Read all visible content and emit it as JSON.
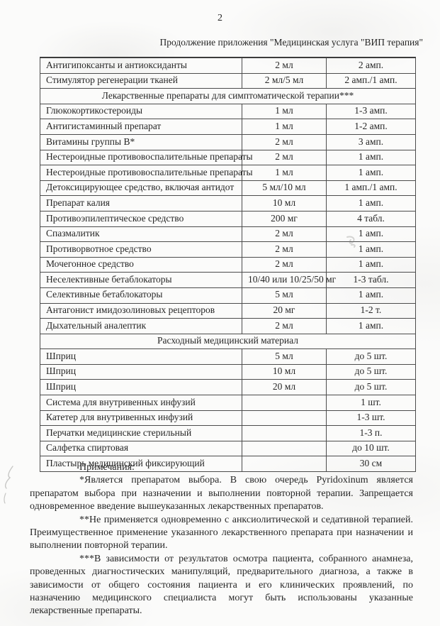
{
  "page": {
    "number": "2",
    "title": "Продолжение приложения \"Медицинская услуга \"ВИП терапия\""
  },
  "colors": {
    "paper": "#fbfbfa",
    "ink": "#262626",
    "table_border": "#4c4c4c"
  },
  "table": {
    "rows": [
      {
        "type": "item",
        "name": "Антигипоксанты и антиоксиданты",
        "dose": "2 мл",
        "qty": "2 амп."
      },
      {
        "type": "item",
        "name": "Стимулятор регенерации тканей",
        "dose": "2 мл/5 мл",
        "qty": "2 амп./1 амп."
      },
      {
        "type": "section",
        "label": "Лекарственные препараты для симптоматической терапии***"
      },
      {
        "type": "item",
        "name": "Глюкокортикостероиды",
        "dose": "1 мл",
        "qty": "1-3 амп."
      },
      {
        "type": "item",
        "name": "Антигистаминный препарат",
        "dose": "1 мл",
        "qty": "1-2 амп."
      },
      {
        "type": "item",
        "name": "Витамины группы В*",
        "dose": "2 мл",
        "qty": "3 амп."
      },
      {
        "type": "item",
        "name": "Нестероидные противовоспалительные препараты",
        "dose": "2 мл",
        "qty": "1 амп."
      },
      {
        "type": "item",
        "name": "Нестероидные противовоспалительные препараты",
        "dose": "1 мл",
        "qty": "1 амп."
      },
      {
        "type": "item",
        "name": "Детоксицирующее средство, включая антидот",
        "dose": "5 мл/10 мл",
        "qty": "1 амп./1 амп."
      },
      {
        "type": "item",
        "name": "Препарат калия",
        "dose": "10 мл",
        "qty": "1 амп."
      },
      {
        "type": "item",
        "name": "Противоэпилептическое средство",
        "dose": "200 мг",
        "qty": "4 табл."
      },
      {
        "type": "item",
        "name": "Спазмалитик",
        "dose": "2 мл",
        "qty": "1 амп."
      },
      {
        "type": "item",
        "name": "Противорвотное средство",
        "dose": "2 мл",
        "qty": "1 амп."
      },
      {
        "type": "item",
        "name": "Мочегонное средство",
        "dose": "2 мл",
        "qty": "1 амп."
      },
      {
        "type": "item",
        "name": "Неселективные бетаблокаторы",
        "dose": "10/40 или 10/25/50 мг",
        "qty": "1-3 табл."
      },
      {
        "type": "item",
        "name": "Селективные бетаблокаторы",
        "dose": "5 мл",
        "qty": "1 амп."
      },
      {
        "type": "item",
        "name": "Антагонист имидозолиновых рецепторов",
        "dose": "20 мг",
        "qty": "1-2 т."
      },
      {
        "type": "item",
        "name": "Дыхательный аналептик",
        "dose": "2 мл",
        "qty": "1 амп."
      },
      {
        "type": "section",
        "label": "Расходный медицинский материал"
      },
      {
        "type": "item",
        "name": "Шприц",
        "dose": "5 мл",
        "qty": "до 5 шт."
      },
      {
        "type": "item",
        "name": "Шприц",
        "dose": "10 мл",
        "qty": "до 5 шт."
      },
      {
        "type": "item",
        "name": "Шприц",
        "dose": "20 мл",
        "qty": "до 5 шт."
      },
      {
        "type": "item",
        "name": "Система для внутривенных инфузий",
        "dose": "",
        "qty": "1 шт."
      },
      {
        "type": "item",
        "name": "Катетер для внутривенных инфузий",
        "dose": "",
        "qty": "1-3 шт."
      },
      {
        "type": "item",
        "name": "Перчатки медицинские стерильный",
        "dose": "",
        "qty": "1-3 п."
      },
      {
        "type": "item",
        "name": "Салфетка спиртовая",
        "dose": "",
        "qty": "до 10 шт."
      },
      {
        "type": "item",
        "name": "Пластырь медицинский фиксирующий",
        "dose": "",
        "qty": "30 см"
      }
    ]
  },
  "notes": {
    "heading": "Примечания:",
    "paragraphs": [
      "*Является препаратом выбора. В свою очередь Pyridoxinum является препаратом выбора при назначении и выполнении повторной терапии. Запрещается одновременное введение вышеуказанных лекарственных препаратов.",
      "**Не применяется одновременно с анксиолитической и седативной терапией. Преимущественное применение указанного лекарственного препарата при назначении и выполнении повторной терапии.",
      "***В зависимости от результатов осмотра пациента, собранного анамнеза, проведенных диагностических манипуляций, предварительного диагноза, а также в зависимости от общего состояния пациента и его клинических проявлений, по назначению медицинского специалиста могут быть использованы указанные лекарственные препараты."
    ]
  }
}
